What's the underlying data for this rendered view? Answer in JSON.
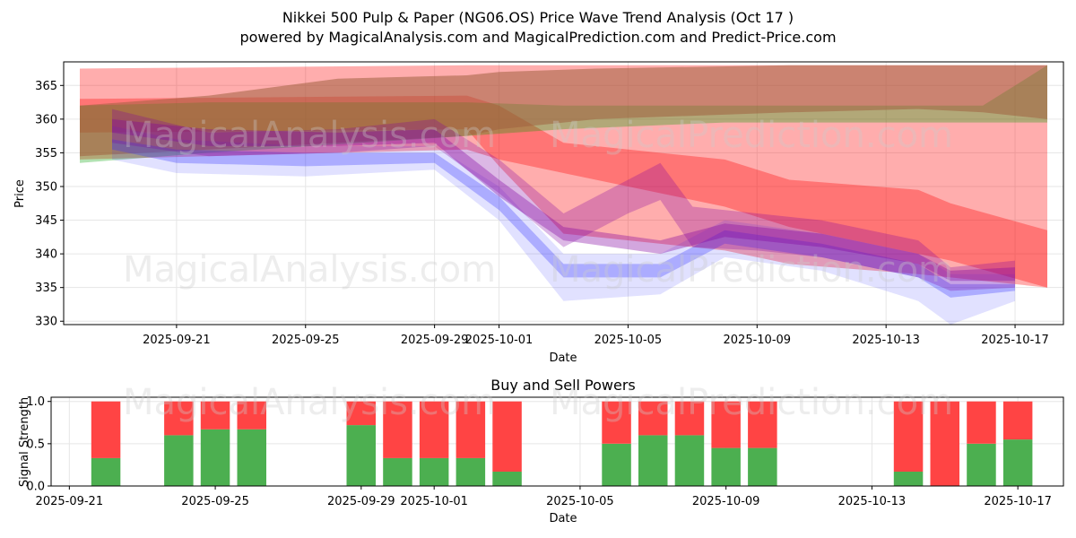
{
  "title_line1": "Nikkei 500 Pulp & Paper (NG06.OS) Price Wave Trend Analysis (Oct 17 )",
  "title_line2": "powered by MagicalAnalysis.com and MagicalPrediction.com and Predict-Price.com",
  "watermarks": [
    "MagicalAnalysis.com",
    "MagicalPrediction.com"
  ],
  "colors": {
    "red_band": "#ff0000",
    "green_band": "#00a000",
    "blue_band": "#3333ff",
    "purple_band": "#8000a0",
    "brown_band": "#a06040",
    "buy": "#4caf50",
    "sell": "#ff4444"
  },
  "chart_data": [
    {
      "type": "area",
      "title": "",
      "xlabel": "Date",
      "ylabel": "Price",
      "xlim": [
        "2025-09-17T12:00",
        "2025-10-18T12:00"
      ],
      "ylim": [
        329.5,
        368.5
      ],
      "xticks": [
        "2025-09-21",
        "2025-09-25",
        "2025-09-29",
        "2025-10-01",
        "2025-10-05",
        "2025-10-09",
        "2025-10-13",
        "2025-10-17"
      ],
      "yticks": [
        330,
        335,
        340,
        345,
        350,
        355,
        360,
        365
      ],
      "grid": true,
      "bands": [
        {
          "name": "red long-term band",
          "color": "red",
          "opacity": 0.32,
          "x": [
            "2025-09-18",
            "2025-09-30",
            "2025-10-01",
            "2025-10-03",
            "2025-10-08",
            "2025-10-10",
            "2025-10-14",
            "2025-10-15",
            "2025-10-18"
          ],
          "upper": [
            367.5,
            368.0,
            368.0,
            368.0,
            368.0,
            368.0,
            368.0,
            368.0,
            368.0
          ],
          "lower": [
            354.0,
            355.5,
            354.0,
            352.0,
            347.0,
            344.0,
            340.0,
            339.0,
            335.0
          ]
        },
        {
          "name": "red mid band",
          "color": "red",
          "opacity": 0.32,
          "x": [
            "2025-09-18",
            "2025-09-30",
            "2025-10-01",
            "2025-10-03",
            "2025-10-08",
            "2025-10-10",
            "2025-10-14",
            "2025-10-15",
            "2025-10-18"
          ],
          "upper": [
            363.0,
            363.5,
            362.0,
            356.5,
            354.0,
            351.0,
            349.5,
            347.5,
            343.5
          ],
          "lower": [
            358.0,
            358.5,
            353.0,
            343.0,
            340.5,
            338.5,
            337.0,
            336.5,
            335.0
          ]
        },
        {
          "name": "green band",
          "color": "green",
          "opacity": 0.3,
          "x": [
            "2025-09-18",
            "2025-09-22",
            "2025-09-30",
            "2025-10-03",
            "2025-10-08",
            "2025-10-14",
            "2025-10-16",
            "2025-10-18"
          ],
          "upper": [
            362.0,
            362.5,
            362.5,
            362.0,
            362.0,
            362.0,
            362.0,
            368.0
          ],
          "lower": [
            353.5,
            355.0,
            357.5,
            358.5,
            359.5,
            359.5,
            359.5,
            359.5
          ]
        },
        {
          "name": "brown band",
          "color": "brown",
          "opacity": 0.55,
          "x": [
            "2025-09-18",
            "2025-09-22",
            "2025-09-26",
            "2025-09-30",
            "2025-10-01",
            "2025-10-04",
            "2025-10-10",
            "2025-10-14",
            "2025-10-16",
            "2025-10-18"
          ],
          "upper": [
            362.0,
            363.5,
            366.0,
            366.5,
            367.0,
            367.5,
            368.0,
            368.0,
            368.0,
            368.0
          ],
          "lower": [
            354.5,
            355.5,
            356.5,
            357.5,
            358.5,
            360.0,
            361.0,
            361.5,
            361.0,
            360.0
          ]
        },
        {
          "name": "blue band",
          "color": "blue",
          "opacity": 0.15,
          "x": [
            "2025-09-19",
            "2025-09-21",
            "2025-09-25",
            "2025-09-29",
            "2025-10-01",
            "2025-10-03",
            "2025-10-06",
            "2025-10-08",
            "2025-10-11",
            "2025-10-14",
            "2025-10-15",
            "2025-10-17"
          ],
          "upper": [
            359.0,
            357.0,
            356.0,
            356.0,
            350.0,
            340.0,
            340.0,
            345.0,
            343.0,
            340.0,
            337.0,
            337.0
          ],
          "lower": [
            354.0,
            352.0,
            351.5,
            352.5,
            345.0,
            333.0,
            334.0,
            339.5,
            337.5,
            333.0,
            329.5,
            333.0
          ]
        },
        {
          "name": "blue core",
          "color": "blue",
          "opacity": 0.3,
          "x": [
            "2025-09-19",
            "2025-09-21",
            "2025-09-25",
            "2025-09-29",
            "2025-10-01",
            "2025-10-03",
            "2025-10-06",
            "2025-10-08",
            "2025-10-11",
            "2025-10-14",
            "2025-10-15",
            "2025-10-17"
          ],
          "upper": [
            357.0,
            355.5,
            355.0,
            355.0,
            348.5,
            338.5,
            338.5,
            343.5,
            341.5,
            338.5,
            335.5,
            335.5
          ],
          "lower": [
            355.5,
            353.5,
            353.0,
            353.5,
            346.5,
            336.5,
            336.5,
            341.5,
            339.5,
            336.5,
            333.5,
            334.5
          ]
        },
        {
          "name": "purple band",
          "color": "purple",
          "opacity": 0.28,
          "x": [
            "2025-09-19",
            "2025-09-22",
            "2025-09-26",
            "2025-09-29",
            "2025-10-01",
            "2025-10-03",
            "2025-10-05",
            "2025-10-06",
            "2025-10-07",
            "2025-10-09",
            "2025-10-11",
            "2025-10-14",
            "2025-10-15",
            "2025-10-17"
          ],
          "upper": [
            361.5,
            358.0,
            358.5,
            360.0,
            354.0,
            346.0,
            351.0,
            353.5,
            347.0,
            346.0,
            345.0,
            342.0,
            338.0,
            339.0
          ],
          "lower": [
            356.5,
            354.5,
            355.0,
            356.0,
            349.0,
            341.0,
            346.0,
            348.0,
            341.0,
            340.5,
            339.5,
            336.5,
            334.5,
            335.0
          ]
        },
        {
          "name": "purple core",
          "color": "purple",
          "opacity": 0.35,
          "x": [
            "2025-09-19",
            "2025-09-22",
            "2025-09-26",
            "2025-09-29",
            "2025-10-01",
            "2025-10-03",
            "2025-10-06",
            "2025-10-08",
            "2025-10-11",
            "2025-10-14",
            "2025-10-15",
            "2025-10-17"
          ],
          "upper": [
            360.0,
            358.5,
            358.0,
            358.5,
            351.0,
            344.0,
            342.0,
            344.5,
            343.0,
            340.0,
            337.5,
            338.0
          ],
          "lower": [
            358.0,
            356.0,
            356.0,
            356.5,
            348.5,
            342.0,
            340.0,
            342.5,
            341.0,
            338.5,
            336.0,
            336.0
          ]
        }
      ]
    },
    {
      "type": "bar",
      "title": "Buy and Sell Powers",
      "xlabel": "Date",
      "ylabel": "Signal Strength",
      "xlim": [
        "2025-09-20T12:00",
        "2025-10-18T06:00"
      ],
      "ylim": [
        0,
        1.05
      ],
      "xticks": [
        "2025-09-21",
        "2025-09-25",
        "2025-09-29",
        "2025-10-01",
        "2025-10-05",
        "2025-10-09",
        "2025-10-13",
        "2025-10-17"
      ],
      "yticks": [
        0.0,
        0.5,
        1.0
      ],
      "grid": true,
      "categories": [
        "2025-09-22",
        "2025-09-24",
        "2025-09-25",
        "2025-09-26",
        "2025-09-29",
        "2025-09-30",
        "2025-10-01",
        "2025-10-02",
        "2025-10-03",
        "2025-10-06",
        "2025-10-07",
        "2025-10-08",
        "2025-10-09",
        "2025-10-10",
        "2025-10-14",
        "2025-10-15",
        "2025-10-16",
        "2025-10-17"
      ],
      "series": [
        {
          "name": "Buy",
          "color": "buy",
          "values": [
            0.33,
            0.6,
            0.67,
            0.67,
            0.72,
            0.33,
            0.33,
            0.33,
            0.17,
            0.5,
            0.6,
            0.6,
            0.45,
            0.45,
            0.17,
            0.0,
            0.5,
            0.55
          ]
        },
        {
          "name": "Sell",
          "color": "sell",
          "values": [
            0.67,
            0.4,
            0.33,
            0.33,
            0.28,
            0.67,
            0.67,
            0.67,
            0.83,
            0.5,
            0.4,
            0.4,
            0.55,
            0.55,
            0.83,
            1.0,
            0.5,
            0.45
          ]
        }
      ]
    }
  ]
}
